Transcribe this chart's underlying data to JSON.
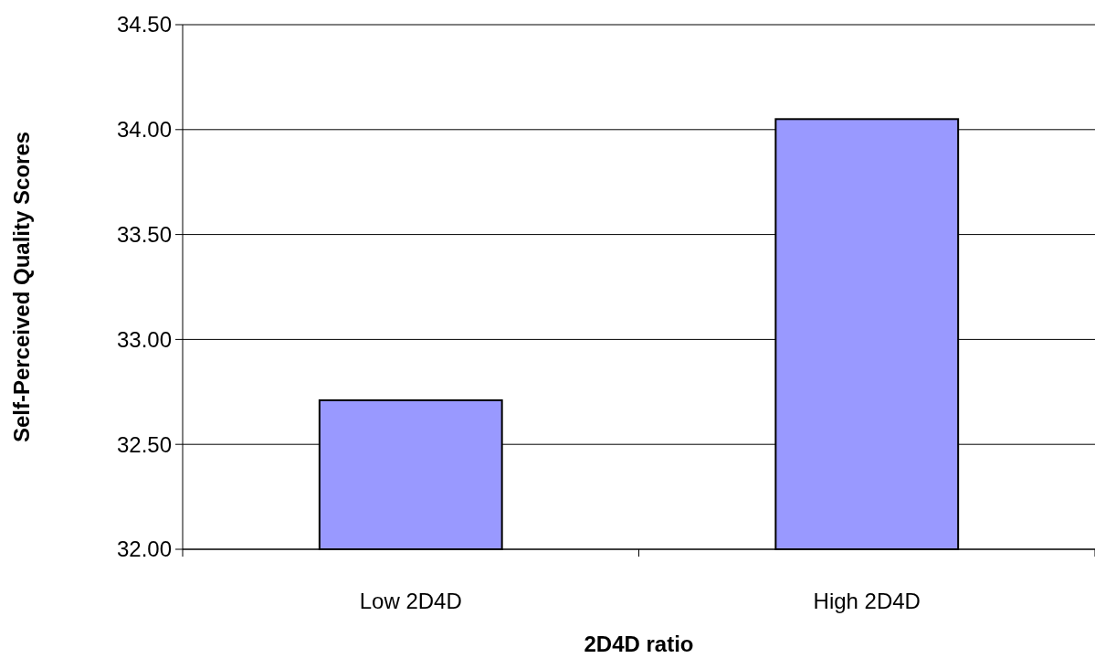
{
  "chart_data": {
    "type": "bar",
    "xlabel": "2D4D ratio",
    "ylabel": "Self-Perceived Quality Scores",
    "categories": [
      "Low 2D4D",
      "High 2D4D"
    ],
    "values": [
      32.71,
      34.05
    ],
    "color": "#9999ff",
    "ylim": [
      32,
      34.5
    ],
    "yticks": [
      {
        "value": 32,
        "label": "32.00"
      },
      {
        "value": 32.5,
        "label": "32.50"
      },
      {
        "value": 33,
        "label": "33.00"
      },
      {
        "value": 33.5,
        "label": "33.50"
      },
      {
        "value": 34,
        "label": "34.00"
      },
      {
        "value": 34.5,
        "label": "34.50"
      }
    ],
    "grid": "y"
  }
}
